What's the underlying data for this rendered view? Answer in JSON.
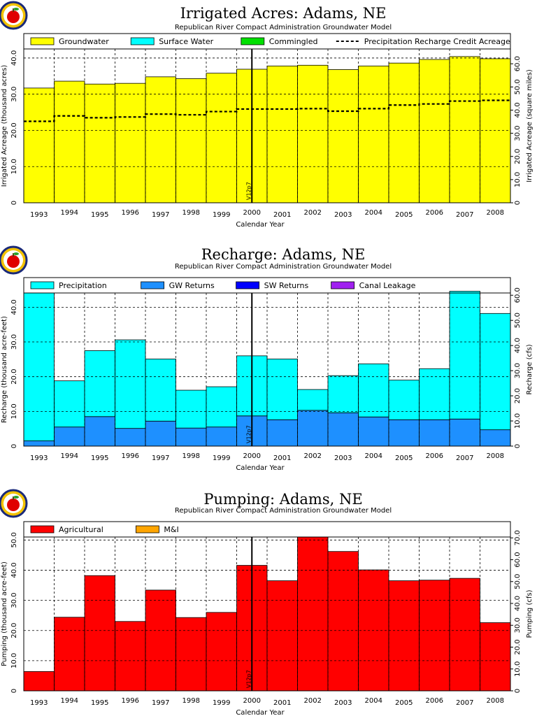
{
  "chart_data": [
    {
      "type": "bar",
      "title": "Irrigated Acres: Adams, NE",
      "subtitle": "Republican River Compact Administration Groundwater Model",
      "xlabel": "Calendar Year",
      "ylabel": "Irrigated Acreage (thousand acres)",
      "ylabel_right": "Irrigated Acreage (square miles)",
      "categories": [
        "1993",
        "1994",
        "1995",
        "1996",
        "1997",
        "1998",
        "1999",
        "2000",
        "2001",
        "2002",
        "2003",
        "2004",
        "2005",
        "2006",
        "2007",
        "2008"
      ],
      "ylim": [
        0,
        42.5
      ],
      "yticks": [
        10.0,
        20.0,
        30.0,
        40.0
      ],
      "ylim_right": [
        0,
        66.4
      ],
      "yticks_right": [
        0,
        10.0,
        20.0,
        30.0,
        40.0,
        50.0,
        60.0
      ],
      "grid": true,
      "legend_position": "top",
      "stacked": true,
      "series": [
        {
          "name": "Groundwater",
          "color": "#ffff00",
          "values": [
            31.7,
            33.6,
            32.8,
            33.0,
            34.8,
            34.3,
            35.8,
            36.9,
            37.8,
            38.0,
            36.8,
            37.8,
            38.6,
            39.6,
            40.4,
            39.8
          ]
        },
        {
          "name": "Surface Water",
          "color": "#00ffff",
          "values": [
            0,
            0,
            0,
            0,
            0,
            0,
            0,
            0,
            0,
            0,
            0,
            0,
            0,
            0,
            0,
            0
          ]
        },
        {
          "name": "Commingled",
          "color": "#00e000",
          "values": [
            0,
            0,
            0,
            0,
            0,
            0,
            0,
            0,
            0,
            0,
            0,
            0,
            0,
            0,
            0,
            0
          ]
        }
      ],
      "line_series": {
        "name": "Precipitation Recharge Credit Acreage",
        "values": [
          22.5,
          24.0,
          23.5,
          23.7,
          24.5,
          24.3,
          25.2,
          25.9,
          25.9,
          26.0,
          25.3,
          26.0,
          27.0,
          27.3,
          28.1,
          28.3
        ]
      },
      "vline": {
        "label": "V12p7",
        "at_index": 8
      }
    },
    {
      "type": "bar",
      "title": "Recharge: Adams, NE",
      "subtitle": "Republican River Compact Administration Groundwater Model",
      "xlabel": "Calendar Year",
      "ylabel": "Recharge (thousand acre-feet)",
      "ylabel_right": "Recharge (cfs)",
      "categories": [
        "1993",
        "1994",
        "1995",
        "1996",
        "1997",
        "1998",
        "1999",
        "2000",
        "2001",
        "2002",
        "2003",
        "2004",
        "2005",
        "2006",
        "2007",
        "2008"
      ],
      "ylim": [
        0,
        44.1
      ],
      "yticks": [
        10.0,
        20.0,
        30.0,
        40.0
      ],
      "ylim_right": [
        0,
        60.9
      ],
      "yticks_right": [
        0,
        10.0,
        20.0,
        30.0,
        40.0,
        50.0,
        60.0
      ],
      "grid": true,
      "legend_position": "top",
      "stacked": true,
      "series": [
        {
          "name": "Precipitation",
          "color": "#00ffff",
          "values": [
            42.6,
            13.3,
            19.0,
            25.5,
            17.9,
            10.9,
            11.6,
            17.3,
            17.5,
            6.0,
            10.7,
            15.3,
            11.4,
            14.7,
            36.8,
            33.5
          ]
        },
        {
          "name": "GW Returns",
          "color": "#1e90ff",
          "values": [
            1.5,
            5.5,
            8.5,
            5.1,
            7.2,
            5.2,
            5.5,
            8.7,
            7.6,
            10.3,
            9.6,
            8.4,
            7.6,
            7.6,
            7.8,
            4.7
          ]
        },
        {
          "name": "SW Returns",
          "color": "#0000ff",
          "values": [
            0,
            0,
            0,
            0,
            0,
            0,
            0,
            0,
            0,
            0,
            0,
            0,
            0,
            0,
            0,
            0
          ]
        },
        {
          "name": "Canal Leakage",
          "color": "#a020f0",
          "values": [
            0,
            0,
            0,
            0,
            0,
            0,
            0,
            0,
            0,
            0,
            0,
            0,
            0,
            0,
            0,
            0
          ]
        }
      ],
      "vline": {
        "label": "V12p7",
        "at_index": 8
      }
    },
    {
      "type": "bar",
      "title": "Pumping: Adams, NE",
      "subtitle": "Republican River Compact Administration Groundwater Model",
      "xlabel": "Calendar Year",
      "ylabel": "Pumping (thousand acre-feet)",
      "ylabel_right": "Pumping (cfs)",
      "categories": [
        "1993",
        "1994",
        "1995",
        "1996",
        "1997",
        "1998",
        "1999",
        "2000",
        "2001",
        "2002",
        "2003",
        "2004",
        "2005",
        "2006",
        "2007",
        "2008"
      ],
      "ylim": [
        0,
        51.0
      ],
      "yticks": [
        10.0,
        20.0,
        30.0,
        40.0,
        50.0
      ],
      "ylim_right": [
        0,
        70.4
      ],
      "yticks_right": [
        0,
        10.0,
        20.0,
        30.0,
        40.0,
        50.0,
        60.0,
        70.0
      ],
      "grid": true,
      "legend_position": "top",
      "stacked": true,
      "series": [
        {
          "name": "Agricultural",
          "color": "#ff0000",
          "values": [
            6.4,
            24.4,
            38.2,
            23.0,
            33.4,
            24.3,
            26.0,
            41.6,
            36.5,
            51.0,
            46.2,
            40.1,
            36.5,
            36.7,
            37.3,
            22.6
          ]
        },
        {
          "name": "M&I",
          "color": "#ffa500",
          "values": [
            0,
            0,
            0,
            0,
            0,
            0,
            0,
            0,
            0,
            0,
            0,
            0,
            0,
            0,
            0,
            0
          ]
        }
      ],
      "vline": {
        "label": "V12p7",
        "at_index": 8
      }
    }
  ]
}
